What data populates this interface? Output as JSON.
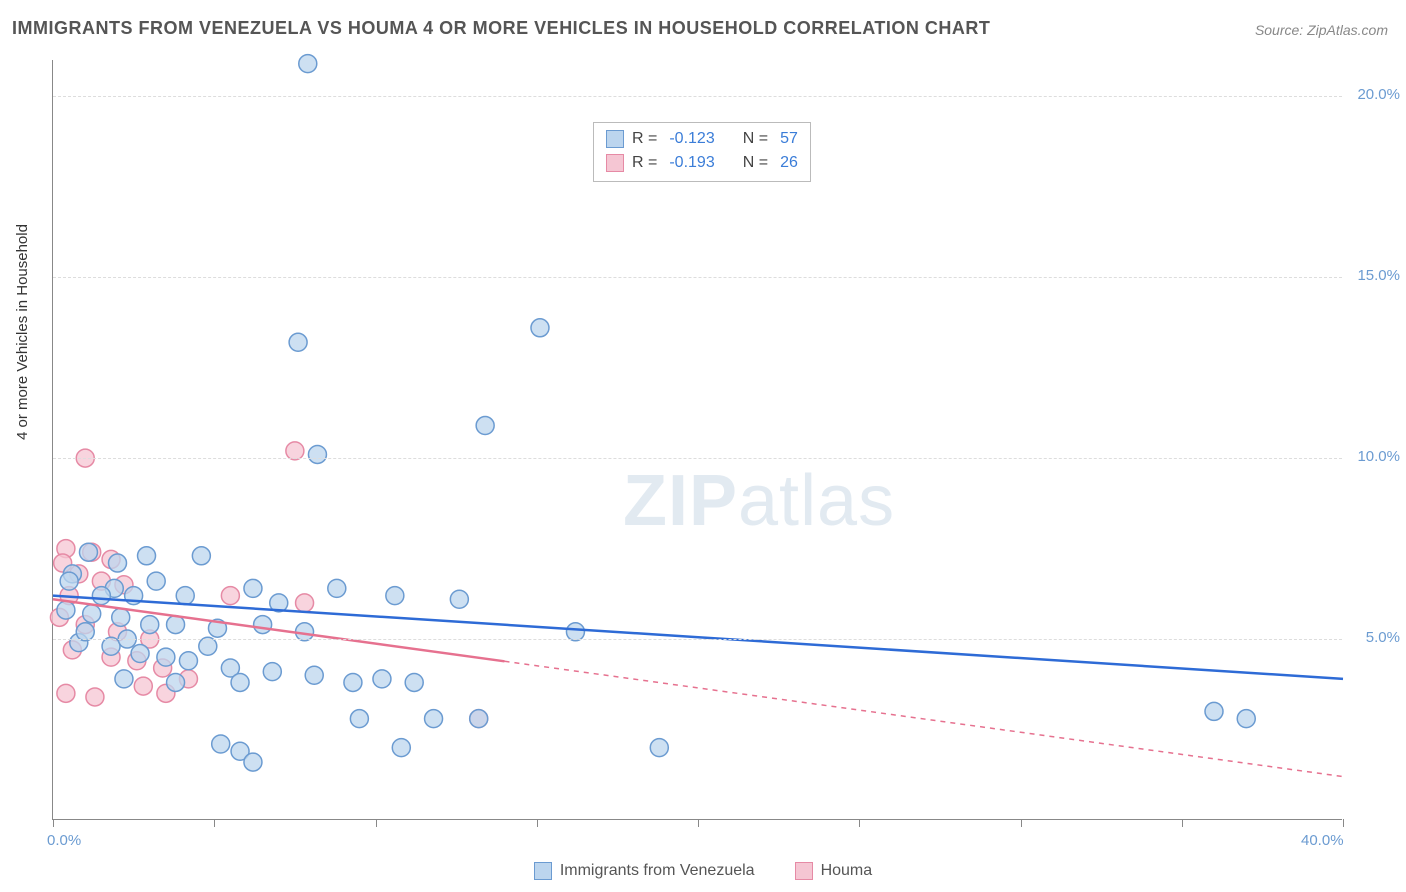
{
  "title": "IMMIGRANTS FROM VENEZUELA VS HOUMA 4 OR MORE VEHICLES IN HOUSEHOLD CORRELATION CHART",
  "source": "Source: ZipAtlas.com",
  "y_axis_label": "4 or more Vehicles in Household",
  "watermark_bold": "ZIP",
  "watermark_rest": "atlas",
  "chart": {
    "type": "scatter",
    "xlim": [
      0,
      40
    ],
    "ylim": [
      0,
      21
    ],
    "x_ticks": [
      0,
      5,
      10,
      15,
      20,
      25,
      30,
      35,
      40
    ],
    "x_tick_labels": [
      "0.0%",
      "",
      "",
      "",
      "",
      "",
      "",
      "",
      "40.0%"
    ],
    "y_ticks": [
      5,
      10,
      15,
      20
    ],
    "y_tick_labels": [
      "5.0%",
      "10.0%",
      "15.0%",
      "20.0%"
    ],
    "background_color": "#ffffff",
    "grid_color": "#dddddd",
    "point_radius": 9,
    "point_stroke_width": 1.5,
    "trend_line_width": 2.5
  },
  "series": [
    {
      "name": "Immigrants from Venezuela",
      "fill_color": "#bcd5ee",
      "stroke_color": "#6b9bd1",
      "R": "-0.123",
      "N": "57",
      "trend": {
        "x1": 0,
        "y1": 6.2,
        "x2": 40,
        "y2": 3.9,
        "solid_until_x": 40
      },
      "points": [
        [
          7.9,
          20.9
        ],
        [
          7.6,
          13.2
        ],
        [
          15.1,
          13.6
        ],
        [
          13.4,
          10.9
        ],
        [
          8.2,
          10.1
        ],
        [
          1.1,
          7.4
        ],
        [
          2.9,
          7.3
        ],
        [
          4.6,
          7.3
        ],
        [
          2.0,
          7.1
        ],
        [
          0.6,
          6.8
        ],
        [
          0.5,
          6.6
        ],
        [
          1.9,
          6.4
        ],
        [
          3.2,
          6.6
        ],
        [
          2.5,
          6.2
        ],
        [
          1.5,
          6.2
        ],
        [
          4.1,
          6.2
        ],
        [
          6.2,
          6.4
        ],
        [
          8.8,
          6.4
        ],
        [
          10.6,
          6.2
        ],
        [
          12.6,
          6.1
        ],
        [
          0.4,
          5.8
        ],
        [
          1.2,
          5.7
        ],
        [
          2.1,
          5.6
        ],
        [
          3.0,
          5.4
        ],
        [
          3.8,
          5.4
        ],
        [
          5.1,
          5.3
        ],
        [
          6.5,
          5.4
        ],
        [
          7.8,
          5.2
        ],
        [
          16.2,
          5.2
        ],
        [
          0.8,
          4.9
        ],
        [
          1.8,
          4.8
        ],
        [
          2.7,
          4.6
        ],
        [
          3.5,
          4.5
        ],
        [
          4.2,
          4.4
        ],
        [
          5.5,
          4.2
        ],
        [
          6.8,
          4.1
        ],
        [
          8.1,
          4.0
        ],
        [
          9.3,
          3.8
        ],
        [
          10.2,
          3.9
        ],
        [
          11.2,
          3.8
        ],
        [
          2.2,
          3.9
        ],
        [
          3.8,
          3.8
        ],
        [
          5.8,
          3.8
        ],
        [
          9.5,
          2.8
        ],
        [
          11.8,
          2.8
        ],
        [
          13.2,
          2.8
        ],
        [
          5.2,
          2.1
        ],
        [
          5.8,
          1.9
        ],
        [
          6.2,
          1.6
        ],
        [
          10.8,
          2.0
        ],
        [
          18.8,
          2.0
        ],
        [
          36.0,
          3.0
        ],
        [
          37.0,
          2.8
        ],
        [
          1.0,
          5.2
        ],
        [
          2.3,
          5.0
        ],
        [
          4.8,
          4.8
        ],
        [
          7.0,
          6.0
        ]
      ]
    },
    {
      "name": "Houma",
      "fill_color": "#f5c6d3",
      "stroke_color": "#e68aa5",
      "R": "-0.193",
      "N": "26",
      "trend": {
        "x1": 0,
        "y1": 6.1,
        "x2": 40,
        "y2": 1.2,
        "solid_until_x": 14
      },
      "points": [
        [
          1.0,
          10.0
        ],
        [
          7.5,
          10.2
        ],
        [
          0.4,
          7.5
        ],
        [
          1.2,
          7.4
        ],
        [
          0.3,
          7.1
        ],
        [
          1.8,
          7.2
        ],
        [
          0.8,
          6.8
        ],
        [
          1.5,
          6.6
        ],
        [
          2.2,
          6.5
        ],
        [
          0.5,
          6.2
        ],
        [
          5.5,
          6.2
        ],
        [
          7.8,
          6.0
        ],
        [
          0.2,
          5.6
        ],
        [
          1.0,
          5.4
        ],
        [
          2.0,
          5.2
        ],
        [
          3.0,
          5.0
        ],
        [
          0.6,
          4.7
        ],
        [
          1.8,
          4.5
        ],
        [
          2.6,
          4.4
        ],
        [
          3.4,
          4.2
        ],
        [
          4.2,
          3.9
        ],
        [
          2.8,
          3.7
        ],
        [
          3.5,
          3.5
        ],
        [
          0.4,
          3.5
        ],
        [
          1.3,
          3.4
        ],
        [
          13.2,
          2.8
        ]
      ]
    }
  ],
  "legend": {
    "R_label": "R =",
    "N_label": "N ="
  },
  "bottom_legend": {
    "series1": "Immigrants from Venezuela",
    "series2": "Houma"
  }
}
